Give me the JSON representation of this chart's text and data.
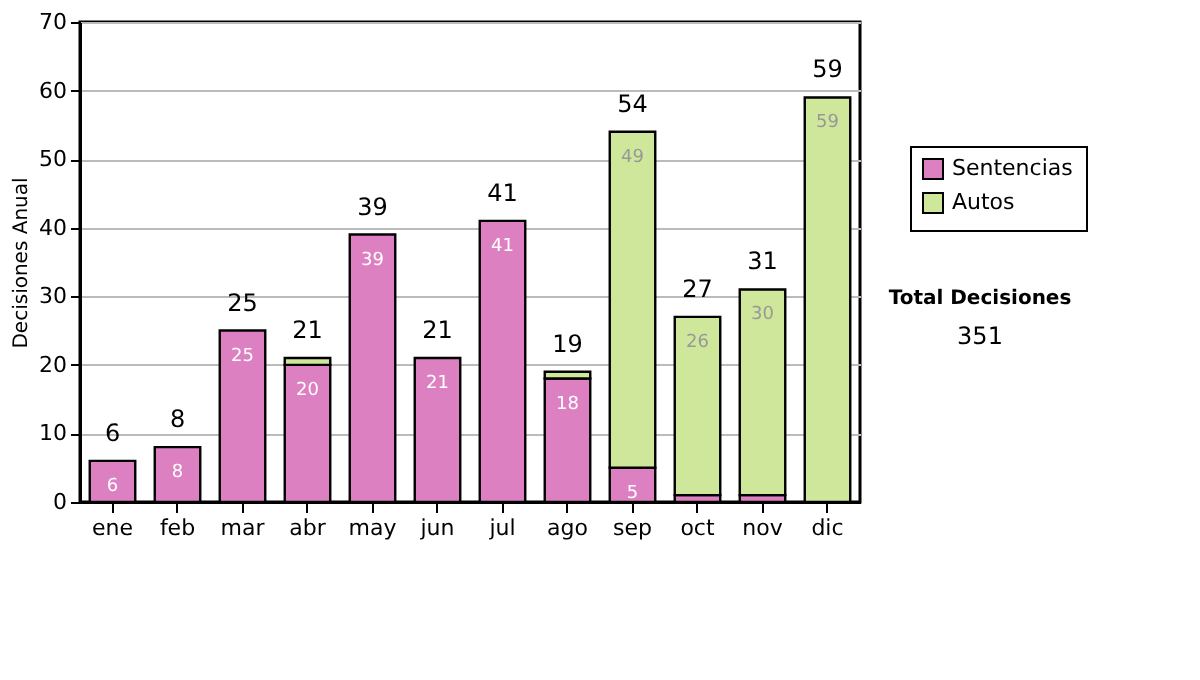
{
  "chart_data": {
    "type": "bar",
    "stacked": true,
    "ylabel": "Decisiones Anual",
    "categories": [
      "ene",
      "feb",
      "mar",
      "abr",
      "may",
      "jun",
      "jul",
      "ago",
      "sep",
      "oct",
      "nov",
      "dic"
    ],
    "series": [
      {
        "name": "Sentencias",
        "color": "#dd80c2",
        "values": [
          6,
          8,
          25,
          20,
          39,
          21,
          41,
          18,
          5,
          1,
          1,
          0
        ],
        "value_labels": [
          "6",
          "8",
          "25",
          "20",
          "39",
          "21",
          "41",
          "18",
          "5",
          null,
          null,
          null
        ]
      },
      {
        "name": "Autos",
        "color": "#cfe79a",
        "values": [
          0,
          0,
          0,
          1,
          0,
          0,
          0,
          1,
          49,
          26,
          30,
          59
        ],
        "value_labels": [
          null,
          null,
          null,
          null,
          null,
          null,
          null,
          null,
          "49",
          "26",
          "30",
          "59"
        ]
      }
    ],
    "totals": [
      "6",
      "8",
      "25",
      "21",
      "39",
      "21",
      "41",
      "19",
      "54",
      "27",
      "31",
      "59"
    ],
    "ylim": [
      0,
      70
    ],
    "yticks": [
      0,
      10,
      20,
      30,
      40,
      50,
      60,
      70
    ],
    "grid": "y",
    "legend": "right",
    "annotations": [
      "Total Decisiones",
      "351"
    ]
  }
}
